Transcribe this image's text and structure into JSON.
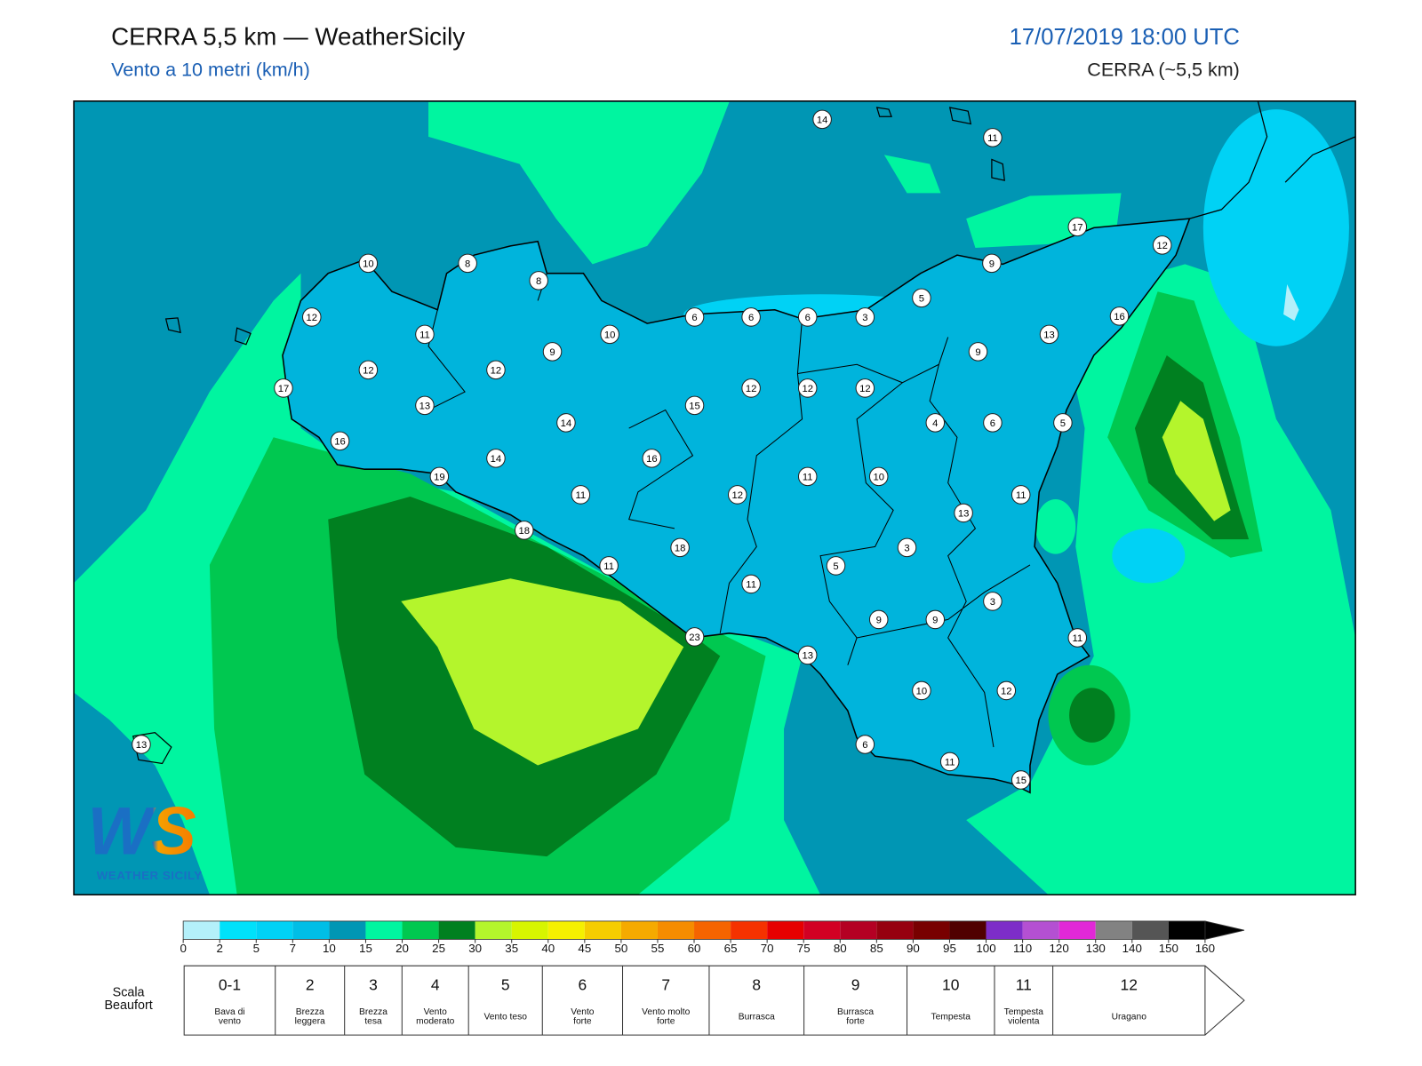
{
  "header": {
    "title": "CERRA 5,5 km — WeatherSicily",
    "subtitle": "Vento a 10 metri (km/h)",
    "datetime": "17/07/2019 18:00 UTC",
    "model": "CERRA (~5,5 km)"
  },
  "map": {
    "stations": [
      14,
      11,
      17,
      12,
      10,
      8,
      8,
      9,
      5,
      12,
      6,
      6,
      6,
      3,
      16,
      11,
      10,
      13,
      9,
      9,
      12,
      12,
      17,
      12,
      12,
      12,
      13,
      15,
      14,
      4,
      6,
      5,
      16,
      14,
      16,
      19,
      11,
      10,
      11,
      12,
      11,
      13,
      18,
      3,
      18,
      5,
      11,
      11,
      3,
      9,
      9,
      11,
      23,
      13,
      10,
      12,
      13,
      6,
      11,
      15
    ]
  },
  "logo": {
    "mark": "WS",
    "name": "WEATHER SICILY"
  },
  "colorbar": {
    "ticks": [
      0,
      2,
      5,
      7,
      10,
      15,
      20,
      25,
      30,
      35,
      40,
      45,
      50,
      55,
      60,
      65,
      70,
      75,
      80,
      85,
      90,
      95,
      100,
      110,
      120,
      130,
      140,
      150,
      160
    ],
    "colors": [
      "#b4f0fa",
      "#00e1fa",
      "#00d2f5",
      "#00bee6",
      "#0096b4",
      "#00f5a0",
      "#00c850",
      "#008020",
      "#b4f52c",
      "#d7f500",
      "#f5f000",
      "#f5cd00",
      "#f5aa00",
      "#f58c00",
      "#f56400",
      "#f53200",
      "#e60000",
      "#d20023",
      "#b40023",
      "#96000f",
      "#780000",
      "#500000",
      "#7d2dc8",
      "#b450d2",
      "#e128d7",
      "#828282",
      "#555555",
      "#000000",
      "#8c4b28",
      "#c88246"
    ]
  },
  "beaufort": {
    "label": [
      "Scala",
      "Beaufort"
    ],
    "levels": [
      {
        "force": "0-1",
        "desc": [
          "Bava di",
          "vento"
        ]
      },
      {
        "force": "2",
        "desc": [
          "Brezza",
          "leggera"
        ]
      },
      {
        "force": "3",
        "desc": [
          "Brezza",
          "tesa"
        ]
      },
      {
        "force": "4",
        "desc": [
          "Vento",
          "moderato"
        ]
      },
      {
        "force": "5",
        "desc": [
          "Vento teso"
        ]
      },
      {
        "force": "6",
        "desc": [
          "Vento",
          "forte"
        ]
      },
      {
        "force": "7",
        "desc": [
          "Vento molto",
          "forte"
        ]
      },
      {
        "force": "8",
        "desc": [
          "Burrasca"
        ]
      },
      {
        "force": "9",
        "desc": [
          "Burrasca",
          "forte"
        ]
      },
      {
        "force": "10",
        "desc": [
          "Tempesta"
        ]
      },
      {
        "force": "11",
        "desc": [
          "Tempesta",
          "violenta"
        ]
      },
      {
        "force": "12",
        "desc": [
          "Uragano"
        ]
      }
    ]
  }
}
